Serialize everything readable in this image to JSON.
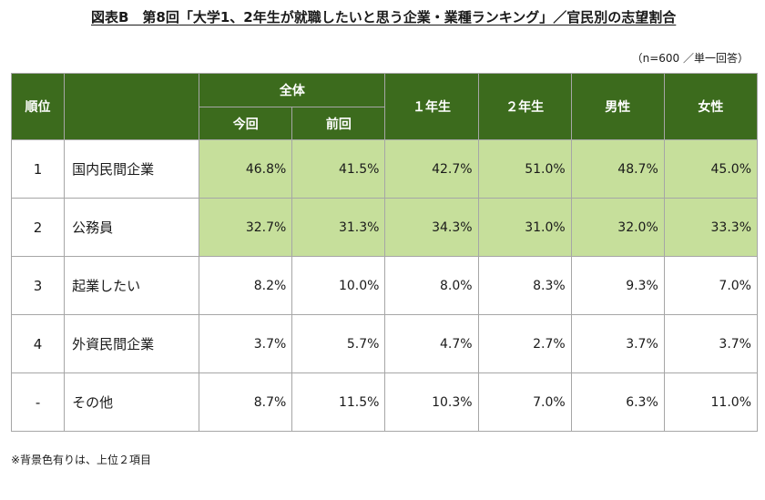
{
  "title": {
    "prefix": "図表B　第8回",
    "main": "「大学1、2年生が就職したいと思う企業・業種ランキング」／官民別の志望割合"
  },
  "note_top": "（n=600 ／単一回答）",
  "headers": {
    "rank": "順位",
    "all": "全体",
    "current": "今回",
    "previous": "前回",
    "year1": "１年生",
    "year2": "２年生",
    "male": "男性",
    "female": "女性"
  },
  "rows": [
    {
      "rank": "1",
      "label": "国内民間企業",
      "values": [
        "46.8%",
        "41.5%",
        "42.7%",
        "51.0%",
        "48.7%",
        "45.0%"
      ],
      "highlight": true
    },
    {
      "rank": "2",
      "label": "公務員",
      "values": [
        "32.7%",
        "31.3%",
        "34.3%",
        "31.0%",
        "32.0%",
        "33.3%"
      ],
      "highlight": true
    },
    {
      "rank": "3",
      "label": "起業したい",
      "values": [
        "8.2%",
        "10.0%",
        "8.0%",
        "8.3%",
        "9.3%",
        "7.0%"
      ],
      "highlight": false
    },
    {
      "rank": "4",
      "label": "外資民間企業",
      "values": [
        "3.7%",
        "5.7%",
        "4.7%",
        "2.7%",
        "3.7%",
        "3.7%"
      ],
      "highlight": false
    },
    {
      "rank": "-",
      "label": "その他",
      "values": [
        "8.7%",
        "11.5%",
        "10.3%",
        "7.0%",
        "6.3%",
        "11.0%"
      ],
      "highlight": false
    }
  ],
  "note_bottom": "※背景色有りは、上位２項目",
  "colors": {
    "header_bg": "#3c6b1d",
    "highlight_bg": "#c6df9b",
    "border": "#a6a6a6"
  }
}
